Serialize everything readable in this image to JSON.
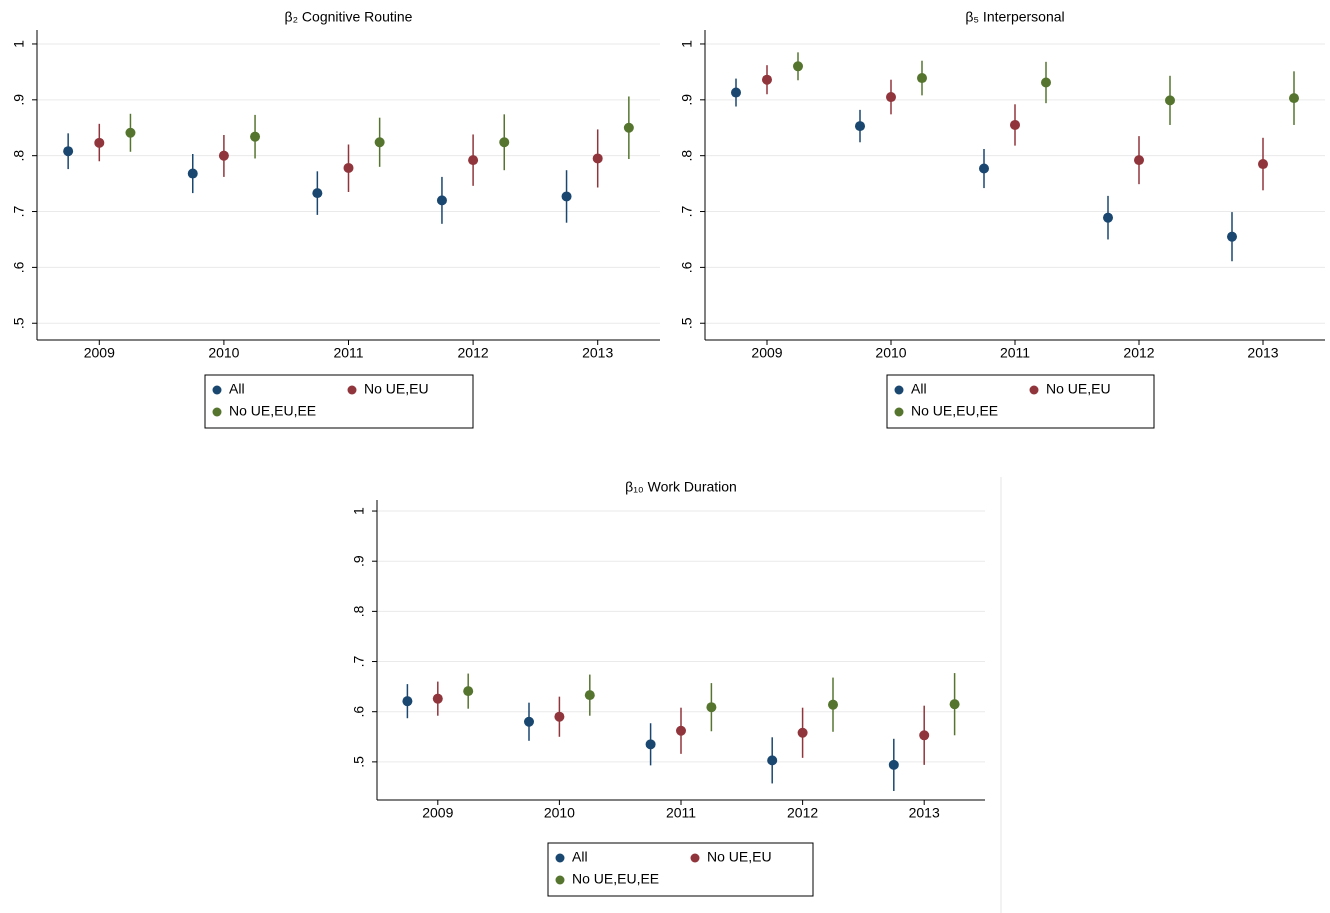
{
  "chart_data": [
    {
      "type": "dot-errorbar",
      "title": "β₂ Cognitive Routine",
      "categories": [
        "2009",
        "2010",
        "2011",
        "2012",
        "2013"
      ],
      "ylim": [
        0.47,
        1.025
      ],
      "yticks": [
        {
          "value": 0.5,
          "label": ".5"
        },
        {
          "value": 0.6,
          "label": ".6"
        },
        {
          "value": 0.7,
          "label": ".7"
        },
        {
          "value": 0.8,
          "label": ".8"
        },
        {
          "value": 0.9,
          "label": ".9"
        },
        1
      ],
      "grid": true,
      "series": [
        {
          "name": "All",
          "color": "#1a476f",
          "values": [
            0.808,
            0.768,
            0.733,
            0.72,
            0.727
          ],
          "lower": [
            0.776,
            0.733,
            0.694,
            0.678,
            0.68
          ],
          "upper": [
            0.84,
            0.803,
            0.772,
            0.762,
            0.774
          ]
        },
        {
          "name": "No UE,EU",
          "color": "#90353b",
          "values": [
            0.823,
            0.8,
            0.778,
            0.792,
            0.795
          ],
          "lower": [
            0.79,
            0.762,
            0.735,
            0.746,
            0.743
          ],
          "upper": [
            0.857,
            0.837,
            0.82,
            0.838,
            0.847
          ]
        },
        {
          "name": "No UE,EU,EE",
          "color": "#55752f",
          "values": [
            0.841,
            0.834,
            0.824,
            0.824,
            0.85
          ],
          "lower": [
            0.807,
            0.795,
            0.78,
            0.774,
            0.794
          ],
          "upper": [
            0.875,
            0.873,
            0.868,
            0.874,
            0.906
          ]
        }
      ]
    },
    {
      "type": "dot-errorbar",
      "title": "β₅ Interpersonal",
      "categories": [
        "2009",
        "2010",
        "2011",
        "2012",
        "2013"
      ],
      "ylim": [
        0.47,
        1.025
      ],
      "yticks": [
        {
          "value": 0.5,
          "label": ".5"
        },
        {
          "value": 0.6,
          "label": ".6"
        },
        {
          "value": 0.7,
          "label": ".7"
        },
        {
          "value": 0.8,
          "label": ".8"
        },
        {
          "value": 0.9,
          "label": ".9"
        },
        1
      ],
      "grid": true,
      "series": [
        {
          "name": "All",
          "color": "#1a476f",
          "values": [
            0.913,
            0.853,
            0.777,
            0.689,
            0.655
          ],
          "lower": [
            0.888,
            0.824,
            0.742,
            0.65,
            0.611
          ],
          "upper": [
            0.938,
            0.882,
            0.812,
            0.728,
            0.699
          ]
        },
        {
          "name": "No UE,EU",
          "color": "#90353b",
          "values": [
            0.936,
            0.905,
            0.855,
            0.792,
            0.785
          ],
          "lower": [
            0.91,
            0.874,
            0.818,
            0.749,
            0.738
          ],
          "upper": [
            0.962,
            0.936,
            0.892,
            0.835,
            0.832
          ]
        },
        {
          "name": "No UE,EU,EE",
          "color": "#55752f",
          "values": [
            0.96,
            0.939,
            0.931,
            0.899,
            0.903
          ],
          "lower": [
            0.935,
            0.908,
            0.894,
            0.855,
            0.855
          ],
          "upper": [
            0.985,
            0.97,
            0.968,
            0.943,
            0.951
          ]
        }
      ]
    },
    {
      "type": "dot-errorbar",
      "title": "β₁₀ Work Duration",
      "categories": [
        "2009",
        "2010",
        "2011",
        "2012",
        "2013"
      ],
      "ylim": [
        0.424,
        1.022
      ],
      "yticks": [
        {
          "value": 0.5,
          "label": ".5"
        },
        {
          "value": 0.6,
          "label": ".6"
        },
        {
          "value": 0.7,
          "label": ".7"
        },
        {
          "value": 0.8,
          "label": ".8"
        },
        {
          "value": 0.9,
          "label": ".9"
        },
        1
      ],
      "grid": true,
      "series": [
        {
          "name": "All",
          "color": "#1a476f",
          "values": [
            0.621,
            0.58,
            0.535,
            0.503,
            0.494
          ],
          "lower": [
            0.587,
            0.542,
            0.493,
            0.457,
            0.442
          ],
          "upper": [
            0.655,
            0.618,
            0.577,
            0.549,
            0.546
          ]
        },
        {
          "name": "No UE,EU",
          "color": "#90353b",
          "values": [
            0.626,
            0.59,
            0.562,
            0.558,
            0.553
          ],
          "lower": [
            0.592,
            0.55,
            0.516,
            0.508,
            0.494
          ],
          "upper": [
            0.66,
            0.63,
            0.608,
            0.608,
            0.612
          ]
        },
        {
          "name": "No UE,EU,EE",
          "color": "#55752f",
          "values": [
            0.641,
            0.633,
            0.609,
            0.614,
            0.615
          ],
          "lower": [
            0.606,
            0.592,
            0.561,
            0.56,
            0.553
          ],
          "upper": [
            0.676,
            0.674,
            0.657,
            0.668,
            0.677
          ]
        }
      ]
    }
  ]
}
